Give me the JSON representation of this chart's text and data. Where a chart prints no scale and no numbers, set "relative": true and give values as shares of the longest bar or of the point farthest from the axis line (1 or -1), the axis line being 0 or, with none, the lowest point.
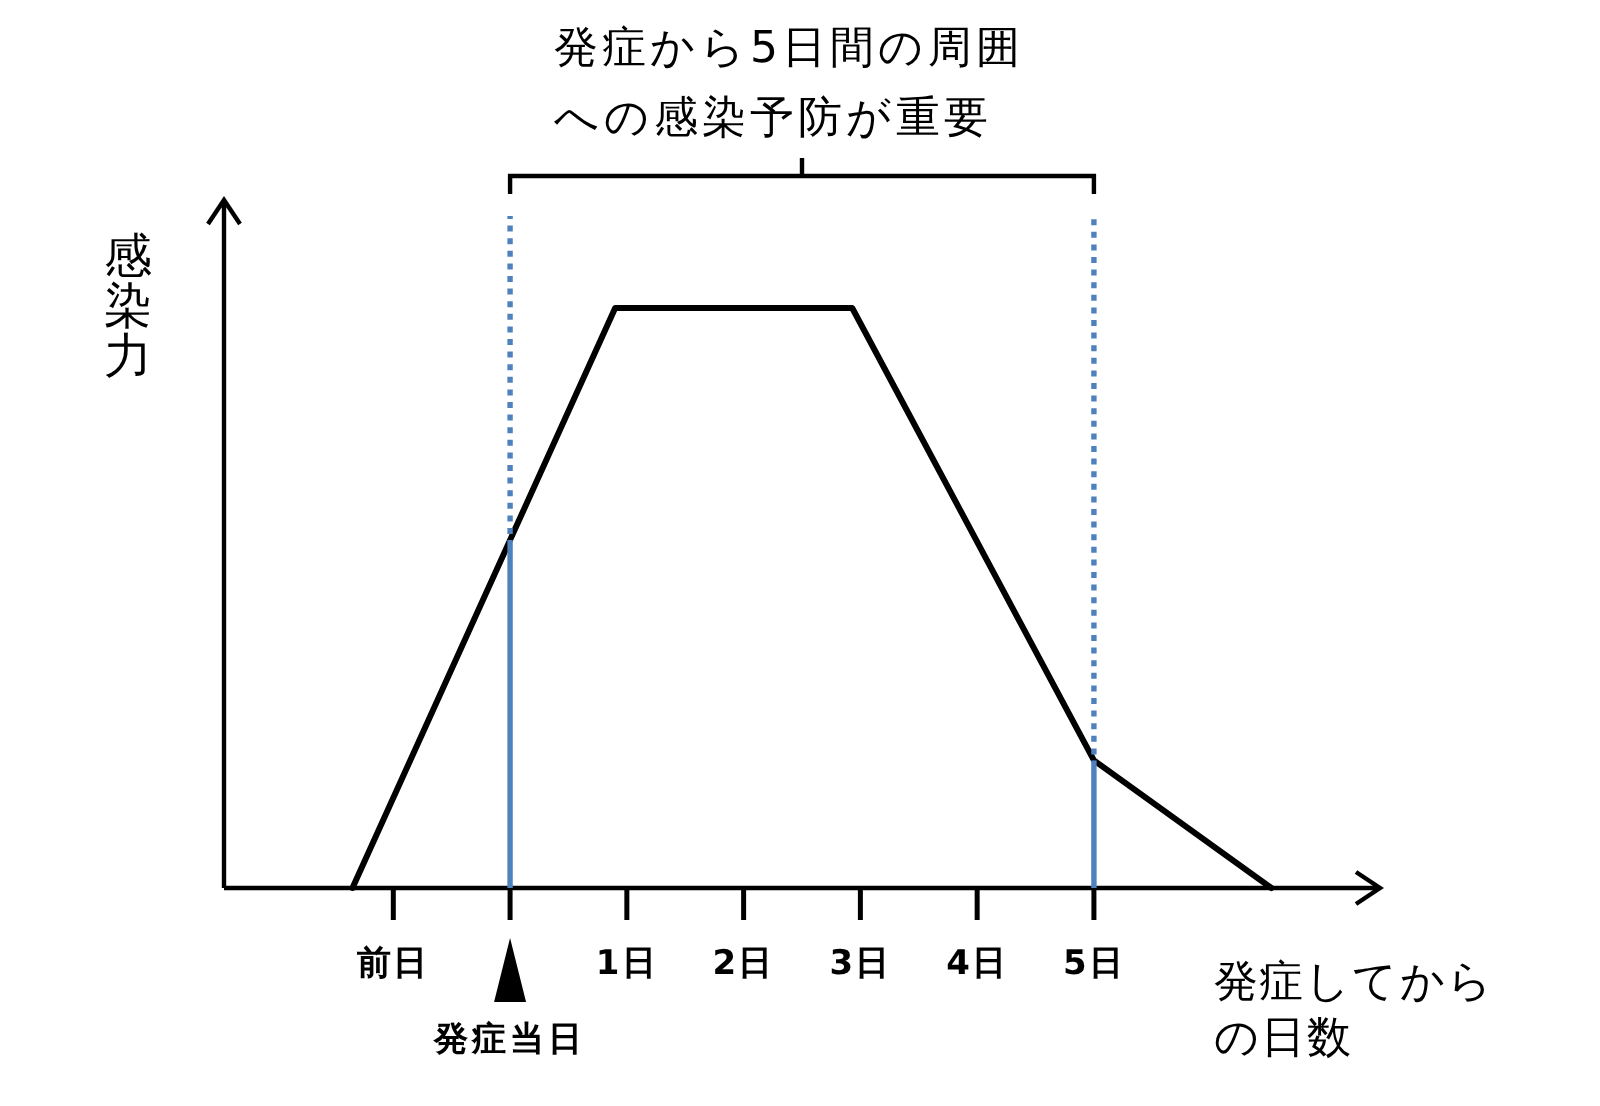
{
  "chart_data": {
    "type": "line",
    "relative": true,
    "xlabel": "発症してからの日数",
    "ylabel": "感染力",
    "x": [
      -1.35,
      0.9,
      2.93,
      5,
      6.52
    ],
    "series": [
      {
        "color": "#000000",
        "values": [
          0,
          1,
          1,
          0.22,
          0
        ]
      }
    ],
    "xlim": [
      -2.45,
      7.45
    ],
    "xticks": [
      {
        "value": -1,
        "label": "前日"
      },
      {
        "value": 0,
        "label": null
      },
      {
        "value": 1,
        "label": "1日"
      },
      {
        "value": 2,
        "label": "2日"
      },
      {
        "value": 3,
        "label": "3日"
      },
      {
        "value": 4,
        "label": "4日"
      },
      {
        "value": 5,
        "label": "5日"
      }
    ],
    "ref_lines": [
      {
        "axis": "x",
        "value": 0,
        "color": "#4f81bd"
      },
      {
        "axis": "x",
        "value": 0,
        "color": "#4f81bd",
        "line_style": "dotted"
      },
      {
        "axis": "x",
        "value": 5,
        "color": "#4f81bd"
      },
      {
        "axis": "x",
        "value": 5,
        "color": "#4f81bd",
        "line_style": "dotted"
      }
    ],
    "annotations": [
      "発症から5日間の周囲への感染予防が重要",
      "発症当日"
    ]
  }
}
